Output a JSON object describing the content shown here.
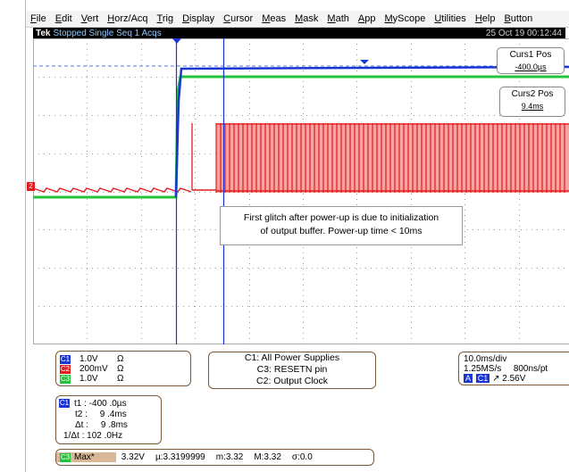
{
  "menu": [
    "File",
    "Edit",
    "Vert",
    "Horz/Acq",
    "Trig",
    "Display",
    "Cursor",
    "Meas",
    "Mask",
    "Math",
    "App",
    "MyScope",
    "Utilities",
    "Help",
    "Button"
  ],
  "status": {
    "brand": "Tek",
    "state": "Stopped Single Seq 1 Acqs",
    "timestamp": "25 Oct 19 00:12:44"
  },
  "cursors": {
    "curs1": {
      "title": "Curs1 Pos",
      "value": "-400.0µs"
    },
    "curs2": {
      "title": "Curs2 Pos",
      "value": "9.4ms"
    }
  },
  "annotation": {
    "line1": "First glitch after power-up is due to initialization",
    "line2": "of output buffer. Power-up time < 10ms"
  },
  "channels": [
    {
      "tag": "C1",
      "scale": "1.0V",
      "coupling": "Ω",
      "color": "#1a35d6"
    },
    {
      "tag": "C2",
      "scale": "200mV",
      "coupling": "Ω",
      "color": "#e21d1d"
    },
    {
      "tag": "C3",
      "scale": "1.0V",
      "coupling": "Ω",
      "color": "#22c43a"
    }
  ],
  "ground_marker": "2",
  "legend": {
    "l1": "C1: All Power Supplies",
    "l2": "C3: RESETN pin",
    "l3": "C2: Output Clock"
  },
  "horizontal": {
    "timebase": "10.0ms/div",
    "rate": "1.25MS/s",
    "res": "800ns/pt",
    "trig_mode": "A",
    "trig_ch": "C1",
    "trig_level": "↗ 2.56V"
  },
  "cursor_readout": {
    "ch": "C1",
    "t1": "t1 : -400 .0µs",
    "t2": "t2 :     9 .4ms",
    "dt": "Δt :     9 .8ms",
    "inv": "1/Δt : 102 .0Hz"
  },
  "measure": {
    "ch": "C3",
    "label": "Max*",
    "value": "3.32V",
    "mu": "µ:3.3199999",
    "m": "m:3.32",
    "M": "M:3.32",
    "sigma": "σ:0.0"
  }
}
